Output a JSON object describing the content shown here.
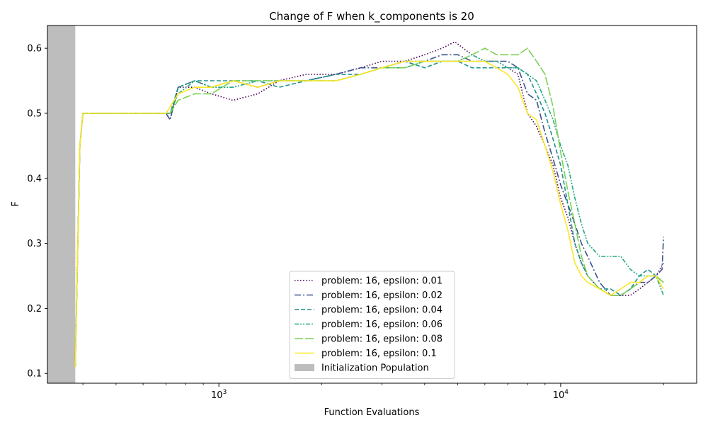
{
  "chart_data": {
    "type": "line",
    "title": "Change of F when k_components is 20",
    "xlabel": "Function Evaluations",
    "ylabel": "F",
    "xscale": "log",
    "xlim": [
      315,
      25000
    ],
    "ylim": [
      0.085,
      0.635
    ],
    "x_ticks": [
      {
        "value": 1000,
        "base": "10",
        "exp": "3"
      },
      {
        "value": 10000,
        "base": "10",
        "exp": "4"
      }
    ],
    "y_ticks": [
      0.1,
      0.2,
      0.3,
      0.4,
      0.5,
      0.6
    ],
    "shaded_region": {
      "label": "Initialization Population",
      "x_start": 315,
      "x_end": 380,
      "color": "#bdbdbd"
    },
    "legend_position": "lower-center",
    "grid": false,
    "series": [
      {
        "name": "problem: 16, epsilon: 0.01",
        "color": "#440154",
        "dash": "dotted",
        "points": [
          [
            380,
            0.11
          ],
          [
            392,
            0.45
          ],
          [
            400,
            0.5
          ],
          [
            700,
            0.5
          ],
          [
            720,
            0.49
          ],
          [
            760,
            0.54
          ],
          [
            850,
            0.54
          ],
          [
            950,
            0.53
          ],
          [
            1100,
            0.52
          ],
          [
            1300,
            0.53
          ],
          [
            1500,
            0.55
          ],
          [
            1800,
            0.56
          ],
          [
            2200,
            0.56
          ],
          [
            2600,
            0.57
          ],
          [
            3000,
            0.58
          ],
          [
            3500,
            0.58
          ],
          [
            4000,
            0.59
          ],
          [
            4500,
            0.6
          ],
          [
            4900,
            0.61
          ],
          [
            5500,
            0.59
          ],
          [
            6000,
            0.58
          ],
          [
            6500,
            0.58
          ],
          [
            7000,
            0.57
          ],
          [
            7500,
            0.56
          ],
          [
            8000,
            0.5
          ],
          [
            8500,
            0.48
          ],
          [
            9000,
            0.45
          ],
          [
            9500,
            0.42
          ],
          [
            10000,
            0.37
          ],
          [
            10500,
            0.34
          ],
          [
            11000,
            0.3
          ],
          [
            11500,
            0.27
          ],
          [
            12000,
            0.25
          ],
          [
            13000,
            0.23
          ],
          [
            14000,
            0.22
          ],
          [
            15000,
            0.22
          ],
          [
            16000,
            0.22
          ],
          [
            17000,
            0.23
          ],
          [
            18000,
            0.24
          ],
          [
            19000,
            0.25
          ],
          [
            20000,
            0.27
          ]
        ]
      },
      {
        "name": "problem: 16, epsilon: 0.02",
        "color": "#3b528b",
        "dash": "dashdot",
        "points": [
          [
            380,
            0.11
          ],
          [
            392,
            0.45
          ],
          [
            400,
            0.5
          ],
          [
            700,
            0.5
          ],
          [
            720,
            0.49
          ],
          [
            760,
            0.54
          ],
          [
            850,
            0.55
          ],
          [
            950,
            0.54
          ],
          [
            1100,
            0.55
          ],
          [
            1300,
            0.54
          ],
          [
            1500,
            0.55
          ],
          [
            1800,
            0.55
          ],
          [
            2200,
            0.56
          ],
          [
            2600,
            0.57
          ],
          [
            3000,
            0.57
          ],
          [
            3500,
            0.58
          ],
          [
            4000,
            0.58
          ],
          [
            4500,
            0.59
          ],
          [
            5000,
            0.59
          ],
          [
            5500,
            0.58
          ],
          [
            6000,
            0.58
          ],
          [
            6500,
            0.58
          ],
          [
            7000,
            0.58
          ],
          [
            7500,
            0.57
          ],
          [
            8000,
            0.53
          ],
          [
            8500,
            0.52
          ],
          [
            9000,
            0.47
          ],
          [
            9500,
            0.43
          ],
          [
            10000,
            0.39
          ],
          [
            10500,
            0.36
          ],
          [
            11000,
            0.33
          ],
          [
            11500,
            0.3
          ],
          [
            12000,
            0.28
          ],
          [
            13000,
            0.24
          ],
          [
            14000,
            0.22
          ],
          [
            15000,
            0.22
          ],
          [
            16000,
            0.23
          ],
          [
            17000,
            0.24
          ],
          [
            18000,
            0.24
          ],
          [
            19000,
            0.25
          ],
          [
            19800,
            0.26
          ],
          [
            20000,
            0.31
          ]
        ]
      },
      {
        "name": "problem: 16, epsilon: 0.04",
        "color": "#21918c",
        "dash": "dashed",
        "points": [
          [
            380,
            0.11
          ],
          [
            392,
            0.45
          ],
          [
            400,
            0.5
          ],
          [
            700,
            0.5
          ],
          [
            720,
            0.5
          ],
          [
            760,
            0.54
          ],
          [
            850,
            0.55
          ],
          [
            950,
            0.55
          ],
          [
            1100,
            0.55
          ],
          [
            1300,
            0.55
          ],
          [
            1500,
            0.54
          ],
          [
            1800,
            0.55
          ],
          [
            2200,
            0.56
          ],
          [
            2600,
            0.56
          ],
          [
            3000,
            0.57
          ],
          [
            3500,
            0.58
          ],
          [
            4000,
            0.57
          ],
          [
            4500,
            0.58
          ],
          [
            5000,
            0.58
          ],
          [
            5500,
            0.57
          ],
          [
            6000,
            0.57
          ],
          [
            6500,
            0.57
          ],
          [
            7000,
            0.57
          ],
          [
            7500,
            0.57
          ],
          [
            8000,
            0.56
          ],
          [
            8500,
            0.53
          ],
          [
            9000,
            0.5
          ],
          [
            9500,
            0.46
          ],
          [
            10000,
            0.42
          ],
          [
            10500,
            0.36
          ],
          [
            11000,
            0.3
          ],
          [
            11500,
            0.27
          ],
          [
            12000,
            0.25
          ],
          [
            13000,
            0.23
          ],
          [
            14000,
            0.23
          ],
          [
            15000,
            0.22
          ],
          [
            16000,
            0.23
          ],
          [
            17000,
            0.25
          ],
          [
            18000,
            0.26
          ],
          [
            19000,
            0.25
          ],
          [
            20000,
            0.24
          ]
        ]
      },
      {
        "name": "problem: 16, epsilon: 0.06",
        "color": "#23a983",
        "dash": "dashdotdot",
        "points": [
          [
            380,
            0.11
          ],
          [
            392,
            0.45
          ],
          [
            400,
            0.5
          ],
          [
            700,
            0.5
          ],
          [
            720,
            0.5
          ],
          [
            760,
            0.53
          ],
          [
            850,
            0.55
          ],
          [
            950,
            0.54
          ],
          [
            1100,
            0.54
          ],
          [
            1300,
            0.55
          ],
          [
            1500,
            0.55
          ],
          [
            1800,
            0.55
          ],
          [
            2200,
            0.55
          ],
          [
            2600,
            0.56
          ],
          [
            3000,
            0.57
          ],
          [
            3500,
            0.57
          ],
          [
            4000,
            0.58
          ],
          [
            4500,
            0.58
          ],
          [
            5000,
            0.58
          ],
          [
            5500,
            0.59
          ],
          [
            6000,
            0.58
          ],
          [
            6500,
            0.58
          ],
          [
            7000,
            0.57
          ],
          [
            7500,
            0.57
          ],
          [
            8000,
            0.56
          ],
          [
            8500,
            0.55
          ],
          [
            9000,
            0.52
          ],
          [
            9500,
            0.49
          ],
          [
            10000,
            0.45
          ],
          [
            10500,
            0.42
          ],
          [
            11000,
            0.37
          ],
          [
            11500,
            0.33
          ],
          [
            12000,
            0.3
          ],
          [
            13000,
            0.28
          ],
          [
            14000,
            0.28
          ],
          [
            15000,
            0.28
          ],
          [
            16000,
            0.26
          ],
          [
            17000,
            0.25
          ],
          [
            18000,
            0.25
          ],
          [
            19000,
            0.25
          ],
          [
            20000,
            0.22
          ]
        ]
      },
      {
        "name": "problem: 16, epsilon: 0.08",
        "color": "#7ad151",
        "dash": "longdash",
        "points": [
          [
            380,
            0.11
          ],
          [
            392,
            0.45
          ],
          [
            400,
            0.5
          ],
          [
            700,
            0.5
          ],
          [
            720,
            0.5
          ],
          [
            760,
            0.52
          ],
          [
            850,
            0.53
          ],
          [
            950,
            0.53
          ],
          [
            1100,
            0.55
          ],
          [
            1300,
            0.55
          ],
          [
            1500,
            0.55
          ],
          [
            1800,
            0.55
          ],
          [
            2200,
            0.55
          ],
          [
            2600,
            0.56
          ],
          [
            3000,
            0.57
          ],
          [
            3500,
            0.57
          ],
          [
            4000,
            0.58
          ],
          [
            4500,
            0.58
          ],
          [
            5000,
            0.58
          ],
          [
            5500,
            0.59
          ],
          [
            6000,
            0.6
          ],
          [
            6500,
            0.59
          ],
          [
            7000,
            0.59
          ],
          [
            7500,
            0.59
          ],
          [
            8000,
            0.6
          ],
          [
            8500,
            0.58
          ],
          [
            9000,
            0.56
          ],
          [
            9500,
            0.51
          ],
          [
            10000,
            0.44
          ],
          [
            10500,
            0.38
          ],
          [
            11000,
            0.33
          ],
          [
            11500,
            0.28
          ],
          [
            12000,
            0.25
          ],
          [
            13000,
            0.23
          ],
          [
            14000,
            0.22
          ],
          [
            15000,
            0.22
          ],
          [
            16000,
            0.23
          ],
          [
            17000,
            0.24
          ],
          [
            18000,
            0.25
          ],
          [
            19000,
            0.25
          ],
          [
            20000,
            0.24
          ]
        ]
      },
      {
        "name": "problem: 16, epsilon: 0.1",
        "color": "#fde725",
        "dash": "solid",
        "points": [
          [
            380,
            0.11
          ],
          [
            392,
            0.45
          ],
          [
            400,
            0.5
          ],
          [
            700,
            0.5
          ],
          [
            720,
            0.51
          ],
          [
            760,
            0.53
          ],
          [
            850,
            0.54
          ],
          [
            950,
            0.54
          ],
          [
            1100,
            0.55
          ],
          [
            1300,
            0.54
          ],
          [
            1500,
            0.55
          ],
          [
            1800,
            0.55
          ],
          [
            2200,
            0.55
          ],
          [
            2600,
            0.56
          ],
          [
            3000,
            0.57
          ],
          [
            3500,
            0.58
          ],
          [
            4000,
            0.58
          ],
          [
            4500,
            0.58
          ],
          [
            5000,
            0.58
          ],
          [
            5500,
            0.58
          ],
          [
            6000,
            0.58
          ],
          [
            6500,
            0.57
          ],
          [
            7000,
            0.56
          ],
          [
            7500,
            0.54
          ],
          [
            8000,
            0.5
          ],
          [
            8500,
            0.49
          ],
          [
            9000,
            0.45
          ],
          [
            9500,
            0.41
          ],
          [
            10000,
            0.36
          ],
          [
            10500,
            0.32
          ],
          [
            11000,
            0.27
          ],
          [
            11500,
            0.25
          ],
          [
            12000,
            0.24
          ],
          [
            13000,
            0.23
          ],
          [
            14000,
            0.22
          ],
          [
            15000,
            0.23
          ],
          [
            16000,
            0.24
          ],
          [
            17000,
            0.24
          ],
          [
            18000,
            0.25
          ],
          [
            19000,
            0.25
          ],
          [
            20000,
            0.23
          ]
        ]
      }
    ]
  }
}
